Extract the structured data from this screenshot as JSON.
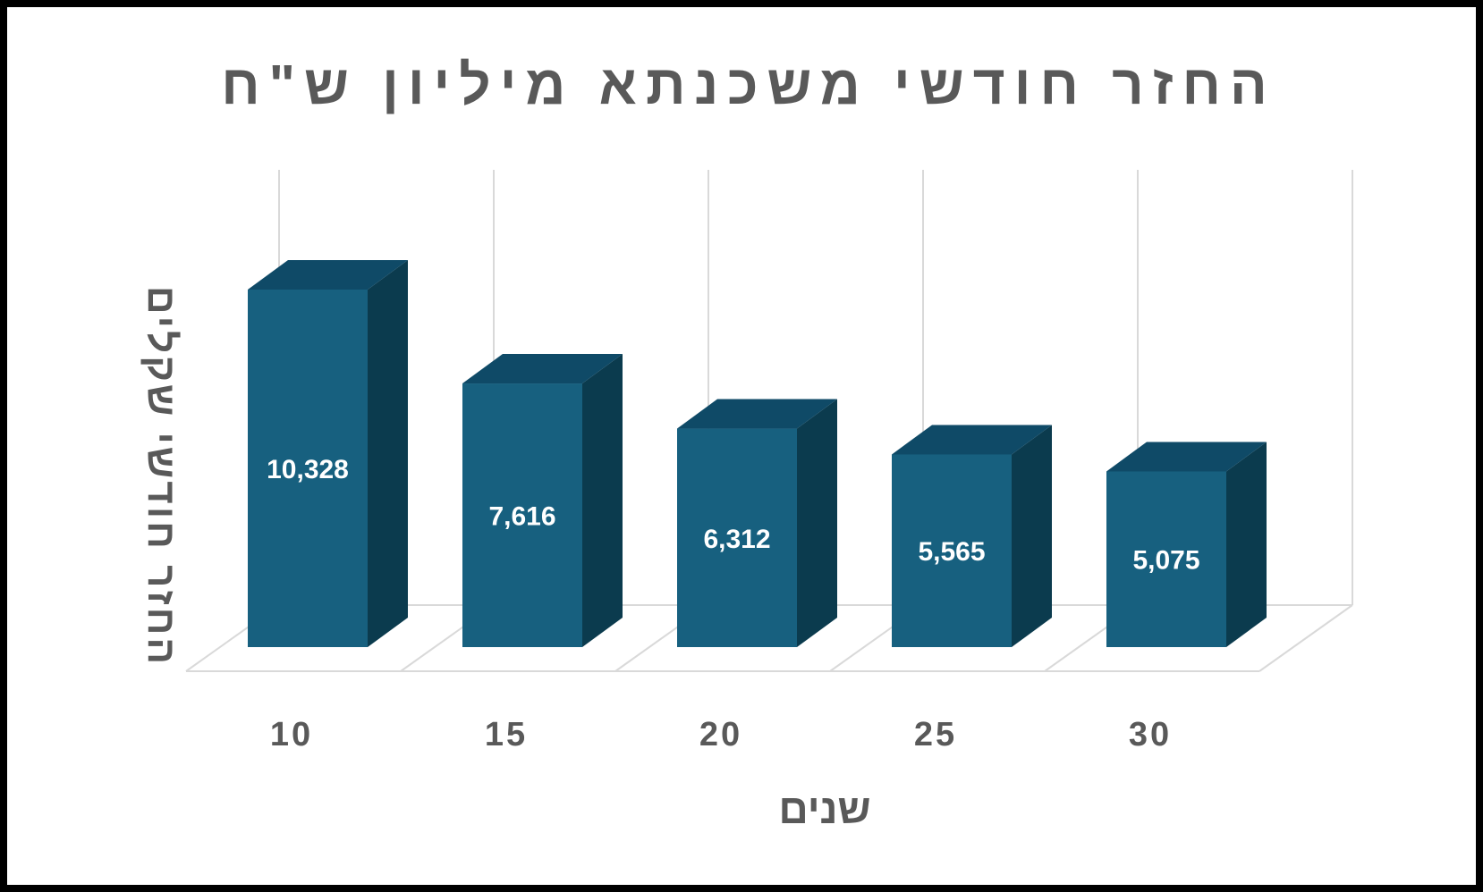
{
  "chart_data": {
    "type": "bar",
    "title": "החזר חודשי משכנתא מיליון ש\"ח",
    "xlabel": "שנים",
    "ylabel": "החזר חודשי שקלים",
    "categories": [
      "10",
      "15",
      "20",
      "25",
      "30"
    ],
    "values": [
      10328,
      7616,
      6312,
      5565,
      5075
    ],
    "data_labels": [
      "10,328",
      "7,616",
      "6,312",
      "5,565",
      "5,075"
    ],
    "ylim": [
      0,
      13000
    ],
    "grid": true,
    "legend": "none",
    "style": "3d-column"
  },
  "colors": {
    "bar_front": "#17607f",
    "bar_top": "#0f4a67",
    "bar_side": "#0b3b4e",
    "grid": "#d9d9d9",
    "text": "#595959",
    "label": "#ffffff"
  }
}
